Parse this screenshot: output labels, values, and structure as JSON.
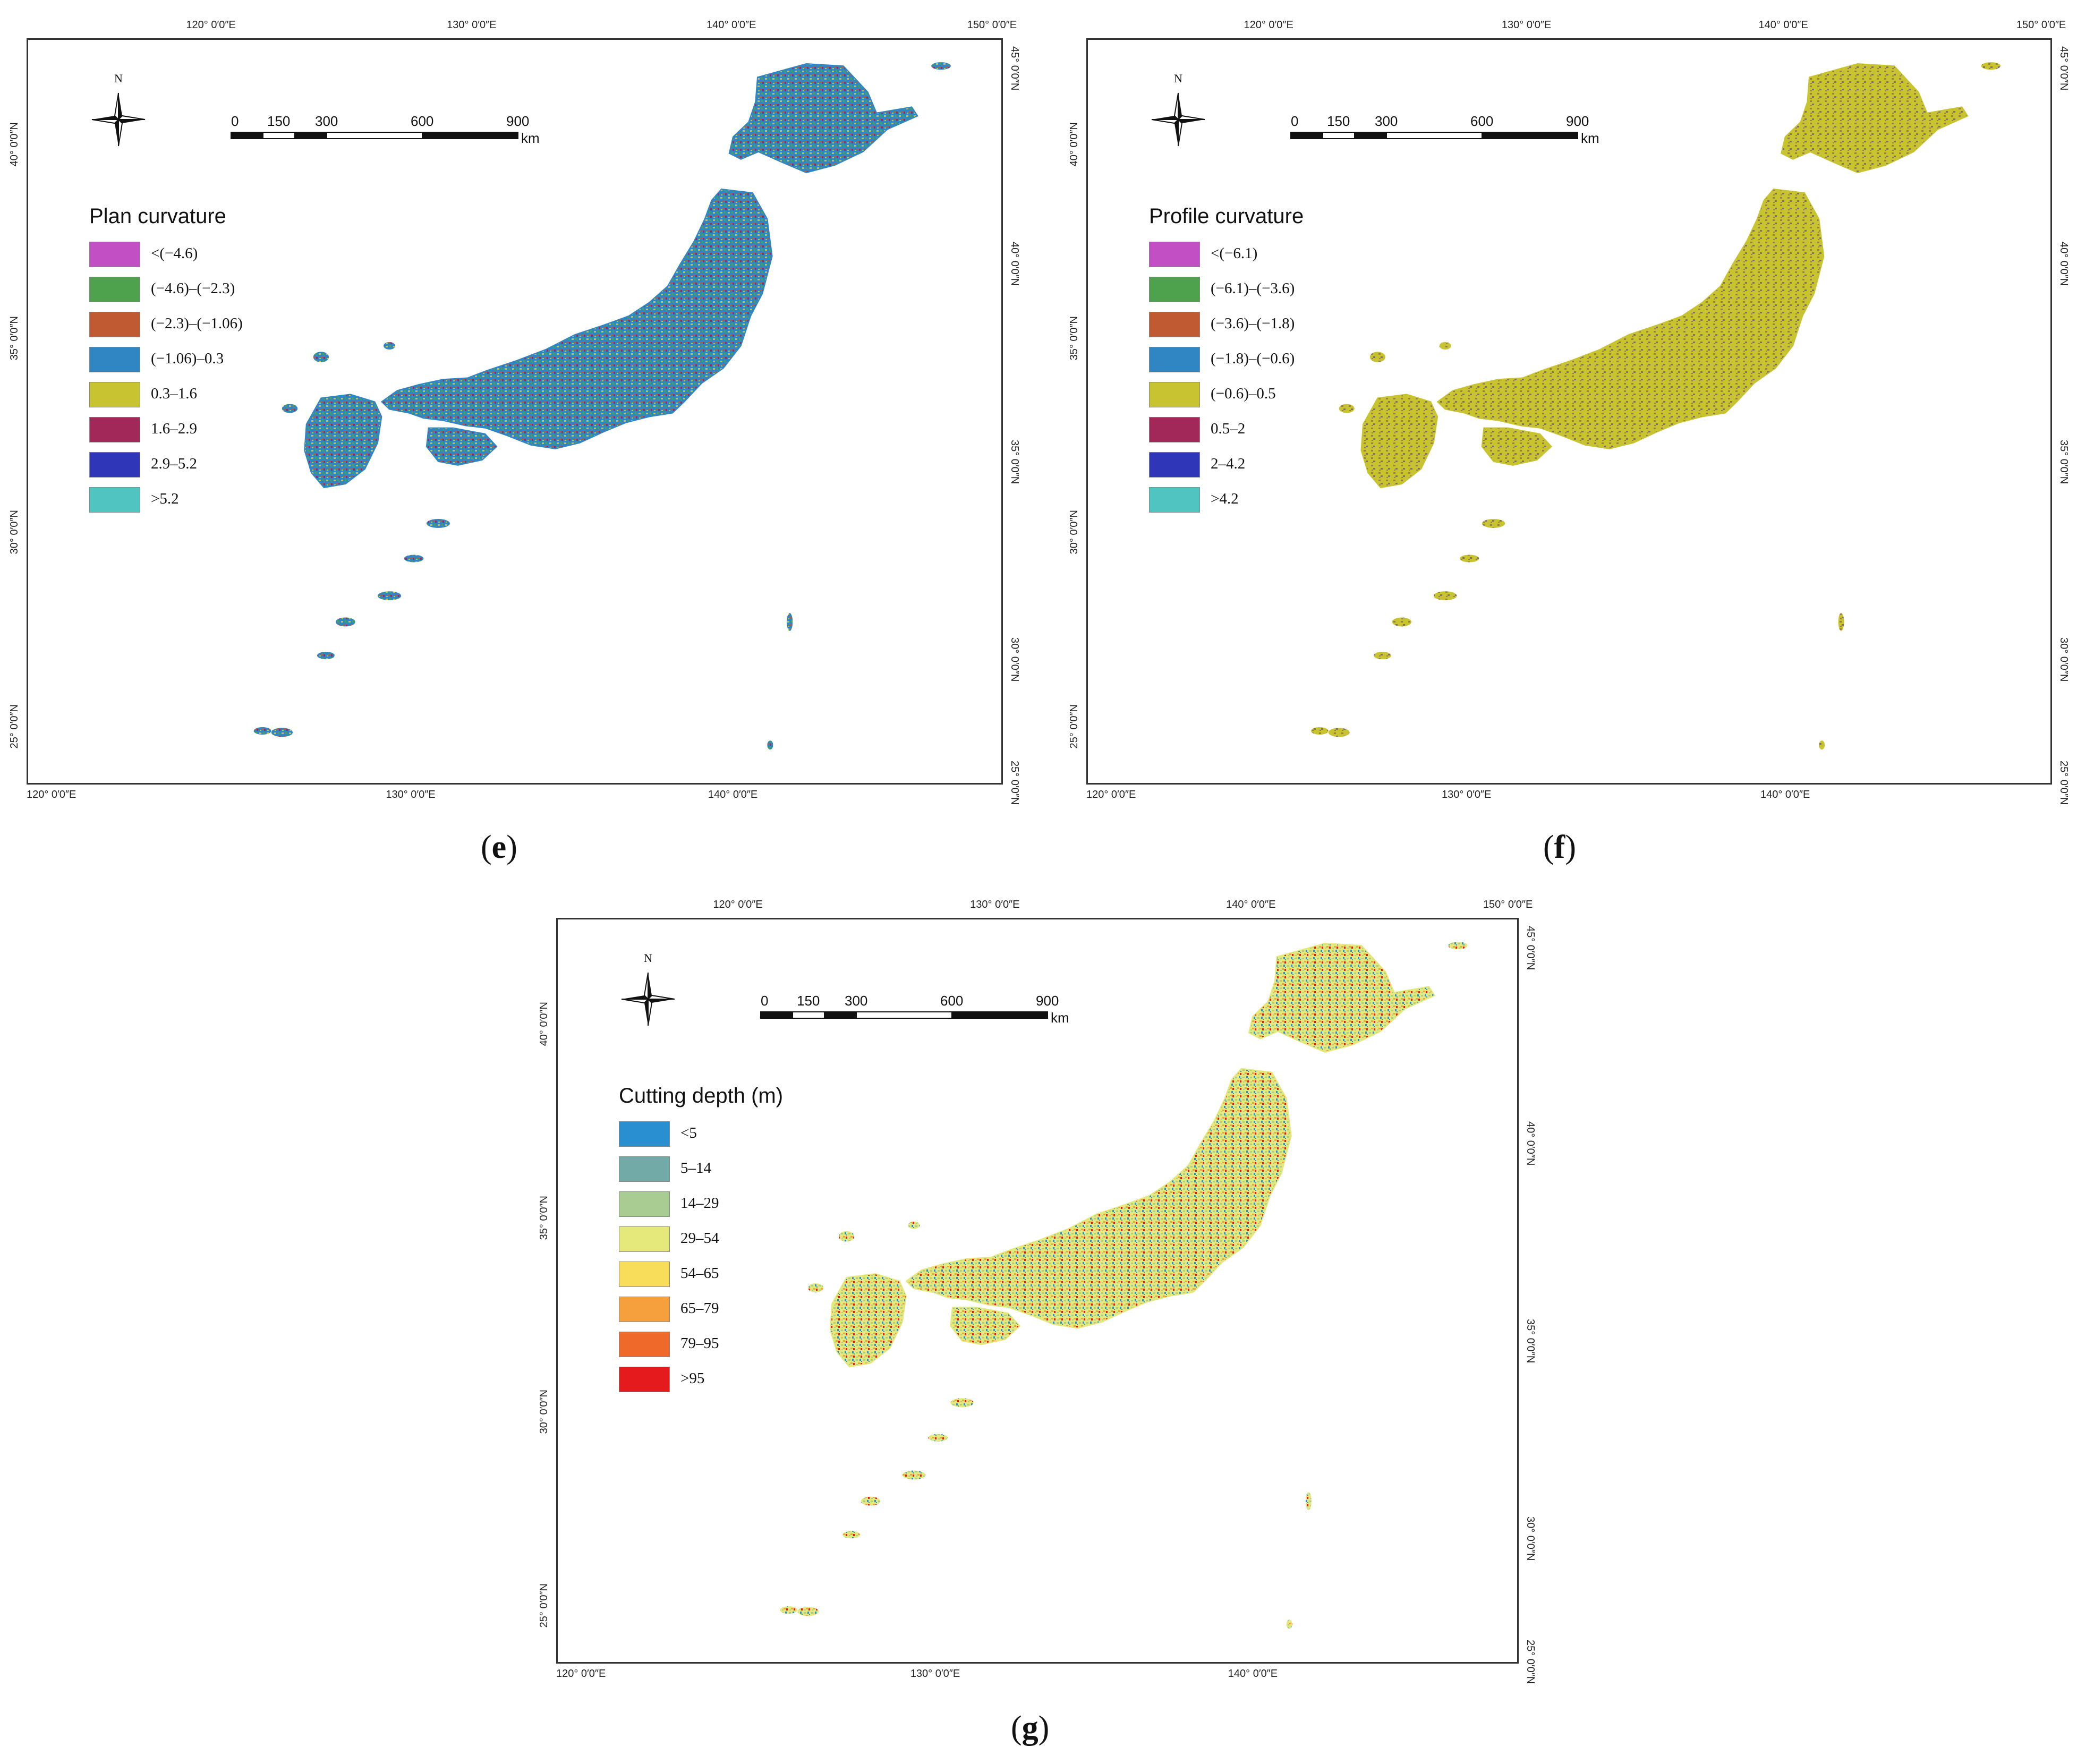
{
  "panels": [
    {
      "id": "e",
      "caption_letter": "e",
      "legend_title": "Plan curvature",
      "legend": [
        {
          "label": "<(−4.6)",
          "color": "#c34fc5"
        },
        {
          "label": "(−4.6)–(−2.3)",
          "color": "#4ea24e"
        },
        {
          "label": "(−2.3)–(−1.06)",
          "color": "#c05a32"
        },
        {
          "label": "(−1.06)–0.3",
          "color": "#2f86c3"
        },
        {
          "label": "0.3–1.6",
          "color": "#c8c431"
        },
        {
          "label": "1.6–2.9",
          "color": "#a3285a"
        },
        {
          "label": "2.9–5.2",
          "color": "#2f36b8"
        },
        {
          "label": ">5.2",
          "color": "#4fc4c1"
        }
      ],
      "land_colors": [
        "#2f86c3",
        "#c8c431",
        "#4ea24e",
        "#c05a32",
        "#a3285a"
      ]
    },
    {
      "id": "f",
      "caption_letter": "f",
      "legend_title": "Profile curvature",
      "legend": [
        {
          "label": "<(−6.1)",
          "color": "#c34fc5"
        },
        {
          "label": "(−6.1)–(−3.6)",
          "color": "#4ea24e"
        },
        {
          "label": "(−3.6)–(−1.8)",
          "color": "#c05a32"
        },
        {
          "label": "(−1.8)–(−0.6)",
          "color": "#2f86c3"
        },
        {
          "label": "(−0.6)–0.5",
          "color": "#c8c431"
        },
        {
          "label": "0.5–2",
          "color": "#a3285a"
        },
        {
          "label": "2–4.2",
          "color": "#2f36b8"
        },
        {
          "label": ">4.2",
          "color": "#4fc4c1"
        }
      ],
      "land_colors": [
        "#c8c431",
        "#9a7a5a",
        "#c8c431",
        "#7f6a8a",
        "#c8c431"
      ]
    },
    {
      "id": "g",
      "caption_letter": "g",
      "legend_title": "Cutting depth (m)",
      "legend": [
        {
          "label": "<5",
          "color": "#2a8fd0"
        },
        {
          "label": "5–14",
          "color": "#72aaa8"
        },
        {
          "label": "14–29",
          "color": "#a9cc92"
        },
        {
          "label": "29–54",
          "color": "#e5e87b"
        },
        {
          "label": "54–65",
          "color": "#f7dd5a"
        },
        {
          "label": "65–79",
          "color": "#f5a03c"
        },
        {
          "label": "79–95",
          "color": "#ef6a2a"
        },
        {
          "label": ">95",
          "color": "#e41a1c"
        }
      ],
      "land_colors": [
        "#e5e87b",
        "#a9cc92",
        "#2a8fd0",
        "#f5a03c",
        "#e41a1c"
      ]
    }
  ],
  "axes": {
    "top_lon": [
      "120° 0′0″E",
      "130° 0′0″E",
      "140° 0′0″E",
      "150° 0′0″E"
    ],
    "bottom_lon": [
      "120° 0′0″E",
      "130° 0′0″E",
      "140° 0′0″E"
    ],
    "left_lat": [
      "40° 0′0″N",
      "35° 0′0″N",
      "30° 0′0″N",
      "25° 0′0″N"
    ],
    "right_lat": [
      "45° 0′0″N",
      "40° 0′0″N",
      "35° 0′0″N",
      "30° 0′0″N",
      "25° 0′0″N"
    ]
  },
  "scale_bar": {
    "ticks": [
      "0",
      "150",
      "300",
      "600",
      "900"
    ],
    "unit": "km"
  },
  "north_arrow_label": "N",
  "icons": {
    "north_arrow": "compass-rose-icon"
  }
}
